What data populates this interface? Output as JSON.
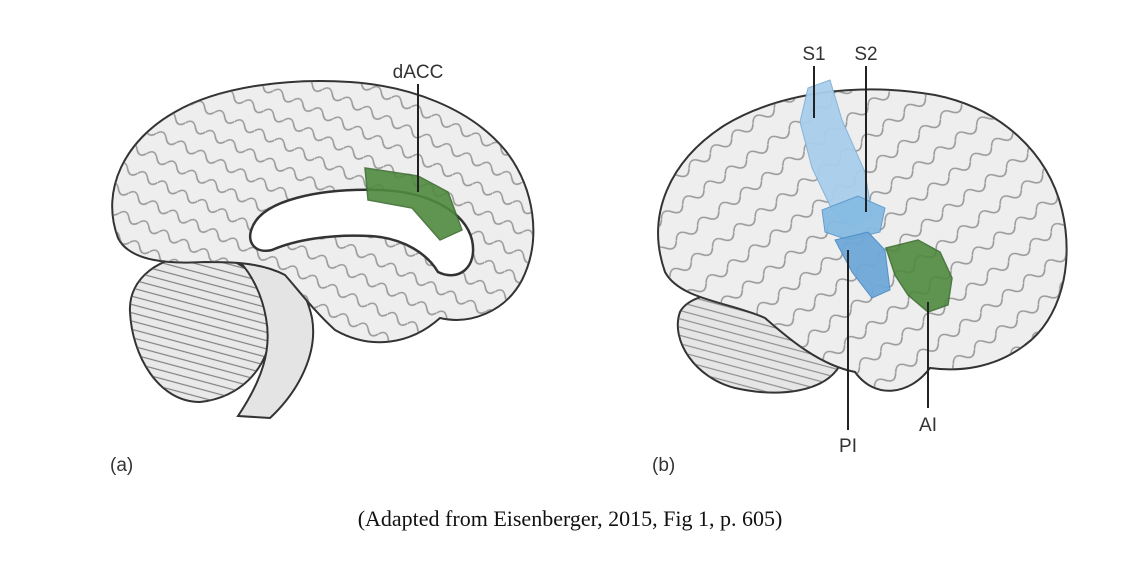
{
  "panel_a": {
    "label": "(a)",
    "regions": [
      {
        "name": "dACC",
        "color": "#4f8a3f"
      }
    ]
  },
  "panel_b": {
    "label": "(b)",
    "regions": [
      {
        "name": "S1",
        "color": "#a9cfec"
      },
      {
        "name": "S2",
        "color": "#a9cfec"
      },
      {
        "name": "PI",
        "color": "#6fa8d8"
      },
      {
        "name": "AI",
        "color": "#4f8a3f"
      }
    ]
  },
  "caption": "(Adapted from Eisenberger, 2015, Fig 1, p. 605)"
}
